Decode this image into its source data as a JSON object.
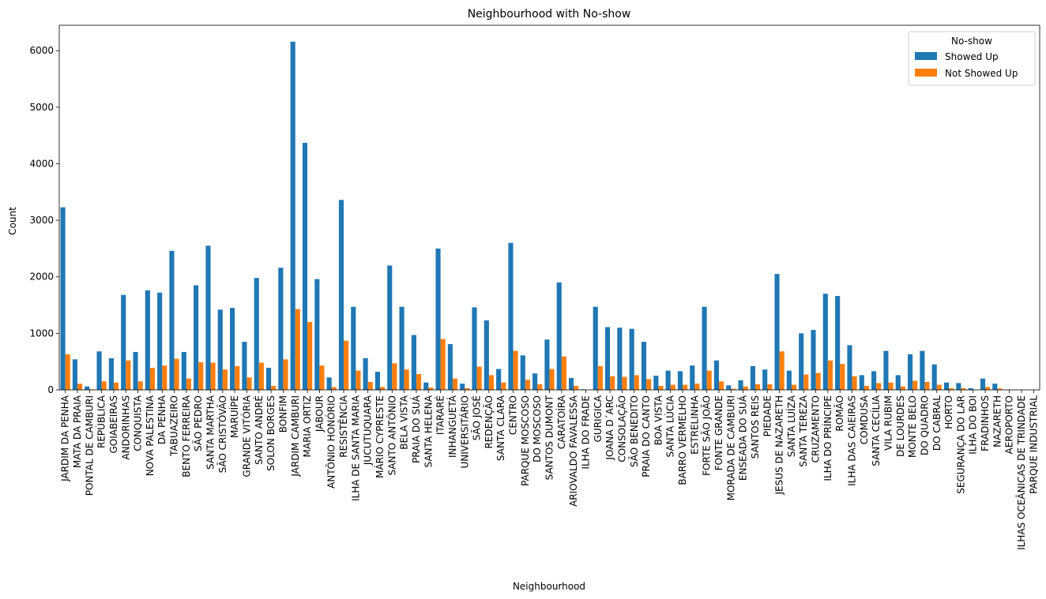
{
  "chart_data": {
    "type": "bar",
    "title": "Neighbourhood with No-show",
    "xlabel": "Neighbourhood",
    "ylabel": "Count",
    "ylim": [
      0,
      6450
    ],
    "yticks": [
      0,
      1000,
      2000,
      3000,
      4000,
      5000,
      6000
    ],
    "legend": {
      "title": "No-show",
      "placement": "top-right"
    },
    "categories": [
      "JARDIM DA PENHA",
      "MATA DA PRAIA",
      "PONTAL DE CAMBURI",
      "REPÚBLICA",
      "GOIABEIRAS",
      "ANDORINHAS",
      "CONQUISTA",
      "NOVA PALESTINA",
      "DA PENHA",
      "TABUAZEIRO",
      "BENTO FERREIRA",
      "SÃO PEDRO",
      "SANTA MARTHA",
      "SÃO CRISTÓVÃO",
      "MARUÍPE",
      "GRANDE VITÓRIA",
      "SANTO ANDRÉ",
      "SOLON BORGES",
      "BONFIM",
      "JARDIM CAMBURI",
      "MARIA ORTIZ",
      "JABOUR",
      "ANTÔNIO HONÓRIO",
      "RESISTÊNCIA",
      "ILHA DE SANTA MARIA",
      "JUCUTUQUARA",
      "MÁRIO CYPRESTE",
      "SANTO ANTÔNIO",
      "BELA VISTA",
      "PRAIA DO SUÁ",
      "SANTA HELENA",
      "ITARARÉ",
      "INHANGUETÁ",
      "UNIVERSITÁRIO",
      "SÃO JOSÉ",
      "REDENÇÃO",
      "SANTA CLARA",
      "CENTRO",
      "PARQUE MOSCOSO",
      "DO MOSCOSO",
      "SANTOS DUMONT",
      "CARATOÍRA",
      "ARIOVALDO FAVALESSA",
      "ILHA DO FRADE",
      "GURIGICA",
      "JOANA D´ARC",
      "CONSOLAÇÃO",
      "SÃO BENEDITO",
      "PRAIA DO CANTO",
      "BOA VISTA",
      "SANTA LÚCIA",
      "BARRO VERMELHO",
      "ESTRELINHA",
      "FORTE SÃO JOÃO",
      "FONTE GRANDE",
      "MORADA DE CAMBURI",
      "ENSEADA DO SUÁ",
      "SANTOS REIS",
      "PIEDADE",
      "JESUS DE NAZARETH",
      "SANTA LUÍZA",
      "SANTA TEREZA",
      "CRUZAMENTO",
      "ILHA DO PRÍNCIPE",
      "ROMÃO",
      "ILHA DAS CAIEIRAS",
      "COMDUSA",
      "SANTA CECÍLIA",
      "VILA RUBIM",
      "DE LOURDES",
      "MONTE BELO",
      "DO QUADRO",
      "DO CABRAL",
      "HORTO",
      "SEGURANÇA DO LAR",
      "ILHA DO BOI",
      "FRADINHOS",
      "NAZARETH",
      "AEROPORTO",
      "ILHAS OCEÂNICAS DE TRINDADE",
      "PARQUE INDUSTRIAL"
    ],
    "series": [
      {
        "name": "Showed Up",
        "color": "#1f77b4",
        "values": [
          3230,
          540,
          60,
          680,
          560,
          1680,
          670,
          1760,
          1720,
          2460,
          670,
          1850,
          2550,
          1420,
          1450,
          850,
          1980,
          390,
          2160,
          6160,
          4370,
          1960,
          220,
          3360,
          1470,
          560,
          320,
          2200,
          1470,
          970,
          130,
          2500,
          810,
          110,
          1460,
          1230,
          370,
          2600,
          610,
          290,
          890,
          1900,
          210,
          10,
          1470,
          1110,
          1100,
          1080,
          850,
          250,
          340,
          330,
          430,
          1470,
          520,
          80,
          170,
          420,
          360,
          2050,
          340,
          1000,
          1060,
          1700,
          1660,
          790,
          260,
          330,
          690,
          260,
          630,
          690,
          450,
          130,
          120,
          30,
          200,
          110,
          5,
          0,
          1
        ]
      },
      {
        "name": "Not Showed Up",
        "color": "#ff7f0e",
        "values": [
          630,
          110,
          10,
          150,
          130,
          520,
          150,
          390,
          430,
          550,
          200,
          490,
          480,
          360,
          420,
          220,
          480,
          70,
          540,
          1430,
          1200,
          430,
          50,
          870,
          340,
          140,
          50,
          470,
          360,
          280,
          40,
          900,
          200,
          30,
          410,
          260,
          130,
          690,
          180,
          100,
          370,
          590,
          70,
          0,
          420,
          240,
          230,
          260,
          190,
          70,
          90,
          90,
          110,
          340,
          150,
          20,
          60,
          100,
          100,
          680,
          90,
          270,
          300,
          520,
          460,
          240,
          70,
          120,
          130,
          60,
          160,
          140,
          90,
          30,
          30,
          5,
          50,
          25,
          2,
          2,
          0
        ]
      }
    ]
  }
}
